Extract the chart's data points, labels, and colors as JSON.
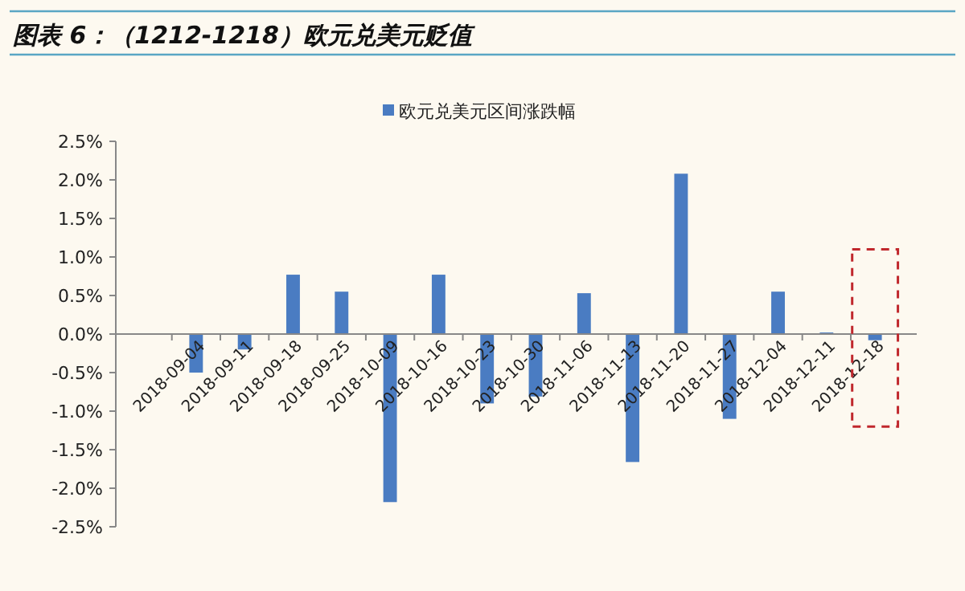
{
  "chart_data": {
    "type": "bar",
    "title": "图表 6：（1212-1218）欧元兑美元贬值",
    "categories": [
      "2018-09-04",
      "2018-09-11",
      "2018-09-18",
      "2018-09-25",
      "2018-10-09",
      "2018-10-16",
      "2018-10-23",
      "2018-10-30",
      "2018-11-06",
      "2018-11-13",
      "2018-11-20",
      "2018-11-27",
      "2018-12-04",
      "2018-12-11",
      "2018-12-18"
    ],
    "series": [
      {
        "name": "欧元兑美元区间涨跌幅",
        "color": "#4a7cc2",
        "values": [
          -0.5,
          -0.2,
          0.77,
          0.55,
          -2.18,
          0.77,
          -0.9,
          -0.81,
          0.53,
          -1.66,
          2.08,
          -1.1,
          0.55,
          0.02,
          -0.08
        ]
      }
    ],
    "ylim": [
      -2.5,
      2.5
    ],
    "yticks": [
      {
        "value": -2.5,
        "label": "-2.5%"
      },
      {
        "value": -2.0,
        "label": "-2.0%"
      },
      {
        "value": -1.5,
        "label": "-1.5%"
      },
      {
        "value": -1.0,
        "label": "-1.0%"
      },
      {
        "value": -0.5,
        "label": "-0.5%"
      },
      {
        "value": 0,
        "label": "0.0%"
      },
      {
        "value": 0.5,
        "label": "0.5%"
      },
      {
        "value": 1.0,
        "label": "1.0%"
      },
      {
        "value": 1.5,
        "label": "1.5%"
      },
      {
        "value": 2.0,
        "label": "2.0%"
      },
      {
        "value": 2.5,
        "label": "2.5%"
      }
    ],
    "legend": "top",
    "grid": false
  }
}
